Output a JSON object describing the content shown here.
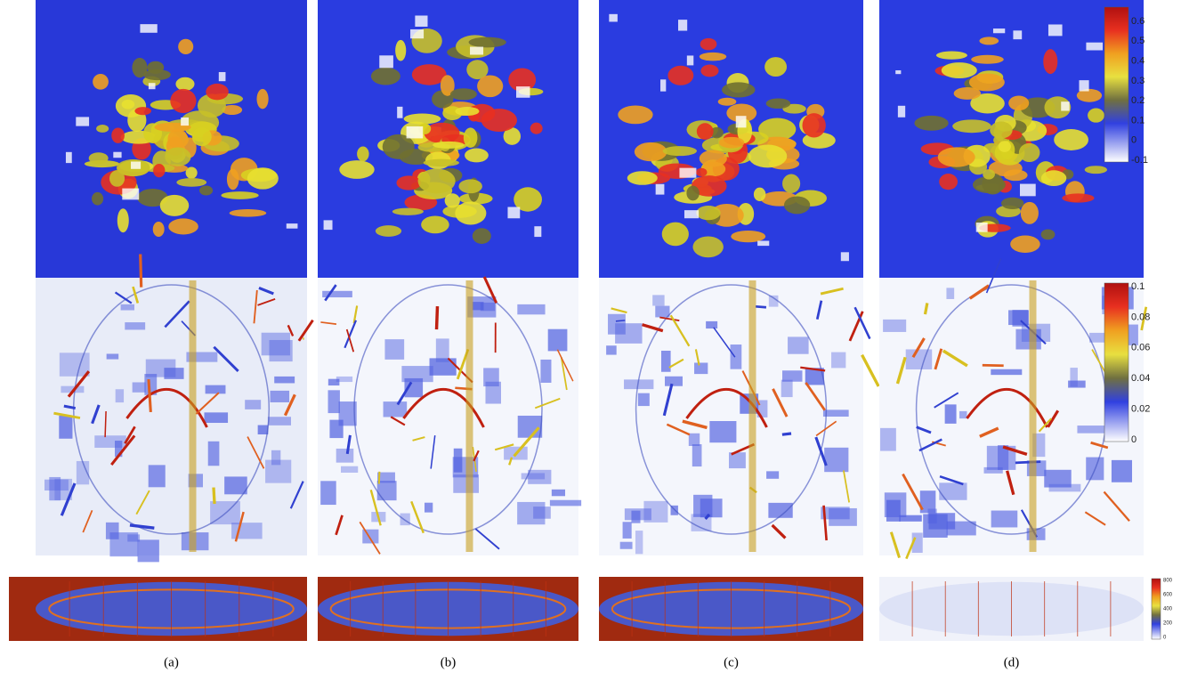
{
  "panels": [
    {
      "caption": "(a)"
    },
    {
      "caption": "(b)"
    },
    {
      "caption": "(c)"
    },
    {
      "caption": "(d)"
    }
  ],
  "colorbars": [
    {
      "ticks": [
        "0.6",
        "0.5",
        "0.4",
        "0.3",
        "0.2",
        "0.1",
        "0",
        "-0.1"
      ]
    },
    {
      "ticks": [
        "0.1",
        "0.08",
        "0.06",
        "0.04",
        "0.02",
        "0"
      ]
    },
    {
      "ticks": [
        "800",
        "600",
        "400",
        "200",
        "0"
      ]
    }
  ]
}
